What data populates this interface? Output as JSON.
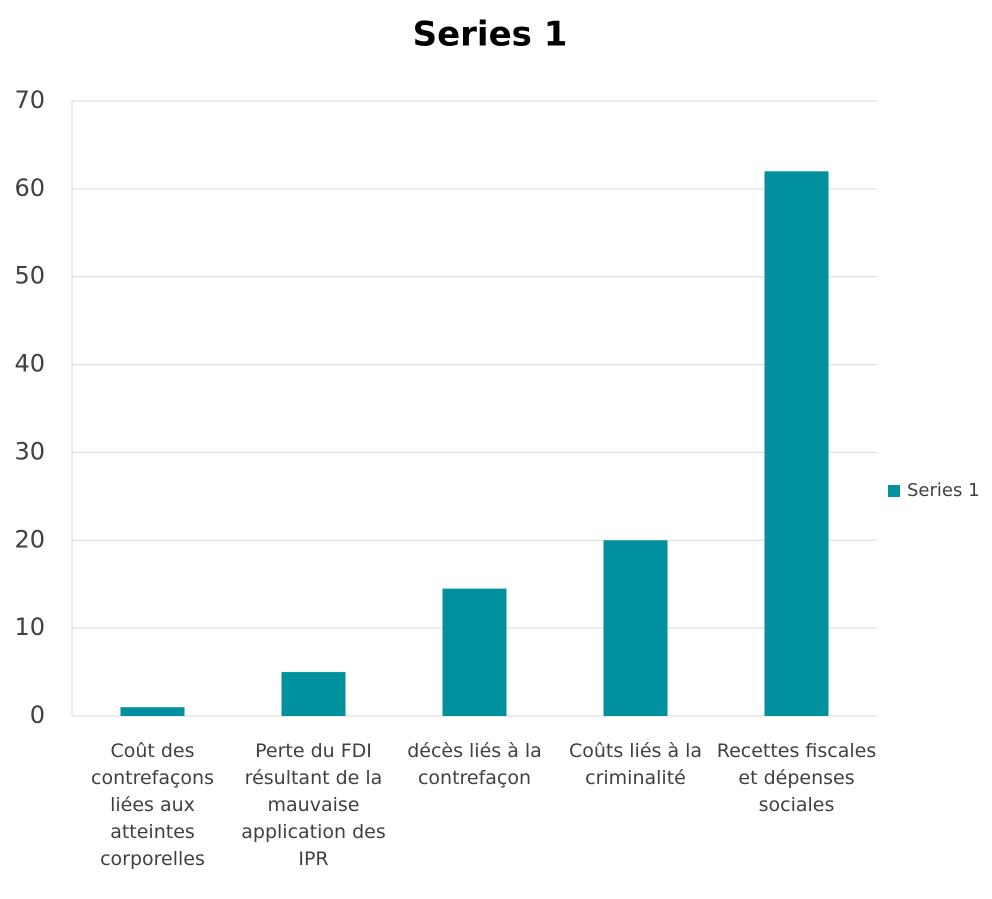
{
  "chart_data": {
    "type": "bar",
    "title": "Series 1",
    "categories": [
      "Coût des contrefaçons liées aux atteintes corporelles",
      "Perte du FDI résultant de la mauvaise application des IPR",
      "décès liés à la contrefaçon",
      "Coûts liés à la criminalité",
      "Recettes fiscales et dépenses sociales"
    ],
    "series": [
      {
        "name": "Series 1",
        "color": "#00909e",
        "values": [
          1,
          5,
          14.5,
          20,
          62
        ]
      }
    ],
    "ylim": [
      0,
      70
    ],
    "yticks": [
      0,
      10,
      20,
      30,
      40,
      50,
      60,
      70
    ],
    "grid": true,
    "legend": "right"
  }
}
